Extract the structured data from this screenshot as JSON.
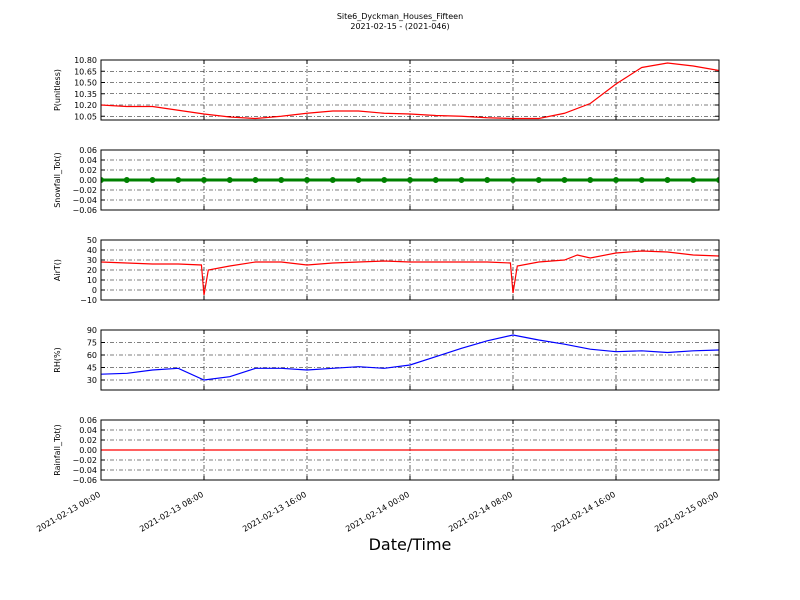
{
  "chart_data": [
    {
      "type": "line",
      "title": "Site6_Dyckman_Houses_Fifteen",
      "subtitle": "2021-02-15 - (2021-046)",
      "ylabel": "P(unitless)",
      "color": "#ff0000",
      "grid": true,
      "x": [
        "2021-02-13 00:00",
        "2021-02-13 02:00",
        "2021-02-13 04:00",
        "2021-02-13 06:00",
        "2021-02-13 08:00",
        "2021-02-13 10:00",
        "2021-02-13 12:00",
        "2021-02-13 14:00",
        "2021-02-13 16:00",
        "2021-02-13 18:00",
        "2021-02-13 20:00",
        "2021-02-13 22:00",
        "2021-02-14 00:00",
        "2021-02-14 02:00",
        "2021-02-14 04:00",
        "2021-02-14 06:00",
        "2021-02-14 08:00",
        "2021-02-14 10:00",
        "2021-02-14 12:00",
        "2021-02-14 14:00",
        "2021-02-14 16:00",
        "2021-02-14 18:00",
        "2021-02-14 20:00",
        "2021-02-14 22:00",
        "2021-02-15 00:00"
      ],
      "values": [
        10.2,
        10.18,
        10.18,
        10.13,
        10.08,
        10.04,
        10.02,
        10.05,
        10.09,
        10.12,
        10.12,
        10.09,
        10.08,
        10.06,
        10.05,
        10.03,
        10.02,
        10.02,
        10.09,
        10.22,
        10.48,
        10.7,
        10.76,
        10.72,
        10.66
      ],
      "xlim": [
        "2021-02-13 00:00",
        "2021-02-15 00:00"
      ],
      "xticks": [
        "2021-02-13 00:00",
        "2021-02-13 08:00",
        "2021-02-13 16:00",
        "2021-02-14 00:00",
        "2021-02-14 08:00",
        "2021-02-14 16:00",
        "2021-02-15 00:00"
      ],
      "ylim": [
        10.0,
        10.8
      ],
      "yticks": [
        10.05,
        {
          "value": 10.2,
          "label": "10.20"
        },
        10.35,
        {
          "value": 10.5,
          "label": "10.50"
        },
        10.65,
        {
          "value": 10.8,
          "label": "10.80"
        }
      ]
    },
    {
      "type": "line",
      "ylabel": "Snowfall_Tot()",
      "color": "#008000",
      "marker": "o",
      "grid": true,
      "x": [
        "2021-02-13 00:00",
        "2021-02-13 02:00",
        "2021-02-13 04:00",
        "2021-02-13 06:00",
        "2021-02-13 08:00",
        "2021-02-13 10:00",
        "2021-02-13 12:00",
        "2021-02-13 14:00",
        "2021-02-13 16:00",
        "2021-02-13 18:00",
        "2021-02-13 20:00",
        "2021-02-13 22:00",
        "2021-02-14 00:00",
        "2021-02-14 02:00",
        "2021-02-14 04:00",
        "2021-02-14 06:00",
        "2021-02-14 08:00",
        "2021-02-14 10:00",
        "2021-02-14 12:00",
        "2021-02-14 14:00",
        "2021-02-14 16:00",
        "2021-02-14 18:00",
        "2021-02-14 20:00",
        "2021-02-14 22:00",
        "2021-02-15 00:00"
      ],
      "values": [
        0,
        0,
        0,
        0,
        0,
        0,
        0,
        0,
        0,
        0,
        0,
        0,
        0,
        0,
        0,
        0,
        0,
        0,
        0,
        0,
        0,
        0,
        0,
        0,
        0
      ],
      "xlim": [
        "2021-02-13 00:00",
        "2021-02-15 00:00"
      ],
      "xticks": [
        "2021-02-13 00:00",
        "2021-02-13 08:00",
        "2021-02-13 16:00",
        "2021-02-14 00:00",
        "2021-02-14 08:00",
        "2021-02-14 16:00",
        "2021-02-15 00:00"
      ],
      "ylim": [
        -0.06,
        0.06
      ],
      "yticks": [
        {
          "value": -0.06,
          "label": "−0.06"
        },
        {
          "value": -0.04,
          "label": "−0.04"
        },
        {
          "value": -0.02,
          "label": "−0.02"
        },
        {
          "value": 0,
          "label": "0.00"
        },
        0.02,
        0.04,
        0.06
      ]
    },
    {
      "type": "line",
      "ylabel": "AirT()",
      "color": "#ff0000",
      "grid": true,
      "x": [
        "2021-02-13 00:00",
        "2021-02-13 02:00",
        "2021-02-13 04:00",
        "2021-02-13 06:00",
        "2021-02-13 07:48",
        "2021-02-13 08:00",
        "2021-02-13 08:20",
        "2021-02-13 10:00",
        "2021-02-13 12:00",
        "2021-02-13 14:00",
        "2021-02-13 16:00",
        "2021-02-13 18:00",
        "2021-02-13 20:00",
        "2021-02-13 22:00",
        "2021-02-14 00:00",
        "2021-02-14 02:00",
        "2021-02-14 04:00",
        "2021-02-14 06:00",
        "2021-02-14 07:48",
        "2021-02-14 08:00",
        "2021-02-14 08:20",
        "2021-02-14 10:00",
        "2021-02-14 12:00",
        "2021-02-14 13:00",
        "2021-02-14 14:00",
        "2021-02-14 16:00",
        "2021-02-14 18:00",
        "2021-02-14 20:00",
        "2021-02-14 22:00",
        "2021-02-15 00:00"
      ],
      "values": [
        28,
        27,
        26,
        26,
        25,
        -5,
        20,
        24,
        28,
        28,
        25,
        27,
        28,
        29,
        28,
        28,
        28,
        28,
        27,
        -3,
        24,
        28,
        30,
        35,
        32,
        37,
        39,
        38,
        35,
        34
      ],
      "xlim": [
        "2021-02-13 00:00",
        "2021-02-15 00:00"
      ],
      "xticks": [
        "2021-02-13 00:00",
        "2021-02-13 08:00",
        "2021-02-13 16:00",
        "2021-02-14 00:00",
        "2021-02-14 08:00",
        "2021-02-14 16:00",
        "2021-02-15 00:00"
      ],
      "ylim": [
        -10,
        50
      ],
      "yticks": [
        {
          "value": -10,
          "label": "−10"
        },
        0,
        10,
        20,
        30,
        40,
        50
      ]
    },
    {
      "type": "line",
      "ylabel": "RH(%)",
      "color": "#0000ff",
      "grid": true,
      "x": [
        "2021-02-13 00:00",
        "2021-02-13 02:00",
        "2021-02-13 04:00",
        "2021-02-13 06:00",
        "2021-02-13 08:00",
        "2021-02-13 10:00",
        "2021-02-13 12:00",
        "2021-02-13 14:00",
        "2021-02-13 16:00",
        "2021-02-13 18:00",
        "2021-02-13 20:00",
        "2021-02-13 22:00",
        "2021-02-14 00:00",
        "2021-02-14 02:00",
        "2021-02-14 04:00",
        "2021-02-14 06:00",
        "2021-02-14 08:00",
        "2021-02-14 10:00",
        "2021-02-14 12:00",
        "2021-02-14 14:00",
        "2021-02-14 16:00",
        "2021-02-14 18:00",
        "2021-02-14 20:00",
        "2021-02-14 22:00",
        "2021-02-15 00:00"
      ],
      "values": [
        37,
        38,
        42,
        44,
        30,
        34,
        44,
        44,
        42,
        44,
        46,
        44,
        48,
        58,
        68,
        77,
        84,
        78,
        73,
        67,
        64,
        65,
        63,
        65,
        66
      ],
      "xlim": [
        "2021-02-13 00:00",
        "2021-02-15 00:00"
      ],
      "xticks": [
        "2021-02-13 00:00",
        "2021-02-13 08:00",
        "2021-02-13 16:00",
        "2021-02-14 00:00",
        "2021-02-14 08:00",
        "2021-02-14 16:00",
        "2021-02-15 00:00"
      ],
      "ylim": [
        18,
        90
      ],
      "yticks": [
        30,
        45,
        60,
        75,
        90
      ]
    },
    {
      "type": "line",
      "ylabel": "Rainfall_Tot()",
      "xlabel": "Date/Time",
      "color": "#ff0000",
      "grid": true,
      "x": [
        "2021-02-13 00:00",
        "2021-02-13 02:00",
        "2021-02-13 04:00",
        "2021-02-13 06:00",
        "2021-02-13 08:00",
        "2021-02-13 10:00",
        "2021-02-13 12:00",
        "2021-02-13 14:00",
        "2021-02-13 16:00",
        "2021-02-13 18:00",
        "2021-02-13 20:00",
        "2021-02-13 22:00",
        "2021-02-14 00:00",
        "2021-02-14 02:00",
        "2021-02-14 04:00",
        "2021-02-14 06:00",
        "2021-02-14 08:00",
        "2021-02-14 10:00",
        "2021-02-14 12:00",
        "2021-02-14 14:00",
        "2021-02-14 16:00",
        "2021-02-14 18:00",
        "2021-02-14 20:00",
        "2021-02-14 22:00",
        "2021-02-15 00:00"
      ],
      "values": [
        0,
        0,
        0,
        0,
        0,
        0,
        0,
        0,
        0,
        0,
        0,
        0,
        0,
        0,
        0,
        0,
        0,
        0,
        0,
        0,
        0,
        0,
        0,
        0,
        0
      ],
      "xlim": [
        "2021-02-13 00:00",
        "2021-02-15 00:00"
      ],
      "xticks": [
        "2021-02-13 00:00",
        "2021-02-13 08:00",
        "2021-02-13 16:00",
        "2021-02-14 00:00",
        "2021-02-14 08:00",
        "2021-02-14 16:00",
        "2021-02-15 00:00"
      ],
      "ylim": [
        -0.06,
        0.06
      ],
      "yticks": [
        {
          "value": -0.06,
          "label": "−0.06"
        },
        {
          "value": -0.04,
          "label": "−0.04"
        },
        {
          "value": -0.02,
          "label": "−0.02"
        },
        {
          "value": 0,
          "label": "0.00"
        },
        0.02,
        0.04,
        0.06
      ]
    }
  ]
}
